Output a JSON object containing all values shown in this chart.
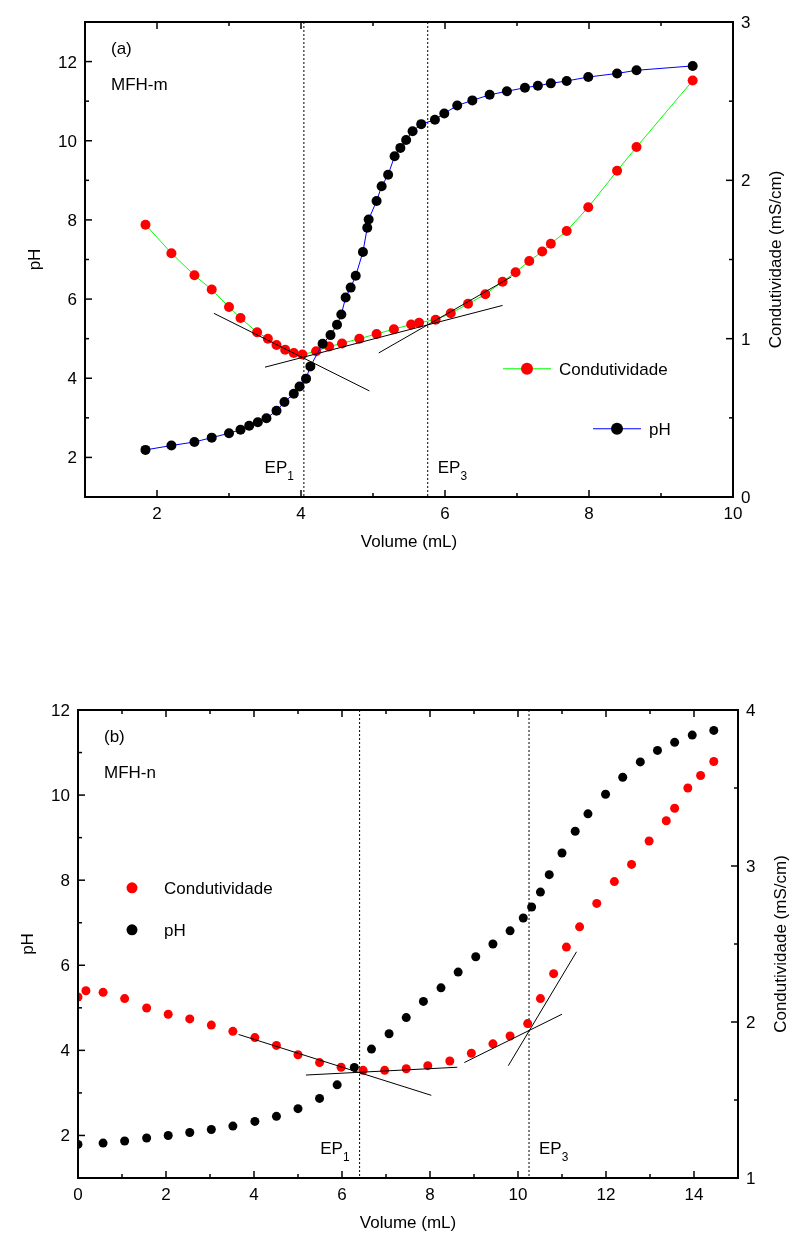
{
  "chart_data": [
    {
      "type": "line",
      "xlabel": "Volume (mL)",
      "ylabel": "pH",
      "y2label": "Condutividade (mS/cm)",
      "annotations": [
        "(a)",
        "MFH-m"
      ],
      "xlim": [
        1,
        10
      ],
      "ylim": [
        1,
        13
      ],
      "y2lim": [
        0,
        3
      ],
      "xticks": [
        2,
        {
          "value": 3,
          "label": null
        },
        4,
        {
          "value": 5,
          "label": null
        },
        6,
        {
          "value": 7,
          "label": null
        },
        8,
        {
          "value": 9,
          "label": null
        },
        10
      ],
      "yticks": [
        2,
        {
          "value": 3,
          "label": null
        },
        4,
        {
          "value": 5,
          "label": null
        },
        6,
        {
          "value": 7,
          "label": null
        },
        8,
        {
          "value": 9,
          "label": null
        },
        10,
        {
          "value": 11,
          "label": null
        },
        12
      ],
      "y2ticks": [
        0,
        {
          "value": 0.5,
          "label": null
        },
        1,
        {
          "value": 1.5,
          "label": null
        },
        2,
        {
          "value": 2.5,
          "label": null
        },
        3
      ],
      "legend": "right",
      "marker": "circle",
      "ref_lines": [
        {
          "axis": "x",
          "value": 4.04,
          "label": "EP$_{1}$",
          "line_style": "dotted"
        },
        {
          "axis": "x",
          "value": 5.76,
          "label": "EP$_{3}$",
          "line_style": "dotted"
        }
      ],
      "series": [
        {
          "name": "Condutividade",
          "color": "#00ff00",
          "colors": [
            "#ff0000",
            "#ff0000",
            "#ff0000",
            "#ff0000",
            "#ff0000",
            "#ff0000",
            "#ff0000",
            "#ff0000",
            "#ff0000",
            "#ff0000",
            "#ff0000",
            "#ff0000",
            "#ff0000",
            "#ff0000",
            "#ff0000",
            "#ff0000",
            "#ff0000",
            "#ff0000",
            "#ff0000",
            "#ff0000",
            "#ff0000",
            "#ff0000",
            "#ff0000",
            "#ff0000",
            "#ff0000",
            "#ff0000",
            "#ff0000",
            "#ff0000",
            "#ff0000",
            "#ff0000",
            "#ff0000",
            "#ff0000",
            "#ff0000",
            "#ff0000"
          ],
          "line_style": "solid",
          "axis": "y2",
          "x": [
            1.84,
            2.2,
            2.52,
            2.76,
            3.0,
            3.16,
            3.39,
            3.54,
            3.66,
            3.78,
            3.9,
            4.02,
            4.21,
            4.39,
            4.57,
            4.81,
            5.05,
            5.29,
            5.53,
            5.64,
            5.87,
            6.08,
            6.32,
            6.56,
            6.8,
            6.98,
            7.17,
            7.35,
            7.47,
            7.69,
            7.99,
            8.39,
            8.66,
            9.44
          ],
          "values": [
            1.72,
            1.54,
            1.4,
            1.31,
            1.2,
            1.13,
            1.04,
            1.0,
            0.96,
            0.93,
            0.91,
            0.9,
            0.92,
            0.95,
            0.97,
            1.0,
            1.03,
            1.06,
            1.09,
            1.1,
            1.12,
            1.16,
            1.22,
            1.28,
            1.36,
            1.42,
            1.49,
            1.55,
            1.6,
            1.68,
            1.83,
            2.06,
            2.21,
            2.63
          ]
        },
        {
          "name": "pH",
          "color": "#0000ff",
          "colors": [
            "#000000",
            "#000000",
            "#000000",
            "#000000",
            "#000000",
            "#000000",
            "#000000",
            "#000000",
            "#000000",
            "#000000",
            "#000000",
            "#000000",
            "#000000",
            "#000000",
            "#000000",
            "#000000",
            "#000000",
            "#000000",
            "#000000",
            "#000000",
            "#000000",
            "#000000",
            "#000000",
            "#000000",
            "#000000",
            "#000000",
            "#000000",
            "#000000",
            "#000000",
            "#000000",
            "#000000",
            "#000000",
            "#000000",
            "#000000",
            "#000000",
            "#000000",
            "#000000",
            "#000000",
            "#000000",
            "#000000",
            "#000000",
            "#000000",
            "#000000",
            "#000000",
            "#000000",
            "#000000",
            "#000000"
          ],
          "line_style": "solid",
          "x": [
            1.84,
            2.2,
            2.52,
            2.76,
            3.0,
            3.16,
            3.28,
            3.4,
            3.52,
            3.66,
            3.77,
            3.9,
            3.98,
            4.07,
            4.13,
            4.3,
            4.41,
            4.5,
            4.56,
            4.62,
            4.69,
            4.76,
            4.86,
            4.92,
            4.94,
            5.05,
            5.12,
            5.21,
            5.3,
            5.38,
            5.46,
            5.55,
            5.67,
            5.86,
            5.99,
            6.17,
            6.38,
            6.62,
            6.86,
            7.11,
            7.29,
            7.47,
            7.69,
            7.99,
            8.39,
            8.66,
            9.44
          ],
          "values": [
            2.19,
            2.3,
            2.39,
            2.5,
            2.61,
            2.7,
            2.8,
            2.89,
            2.99,
            3.18,
            3.4,
            3.61,
            3.79,
            3.99,
            4.3,
            4.87,
            5.09,
            5.35,
            5.61,
            6.04,
            6.29,
            6.59,
            7.19,
            7.8,
            8.01,
            8.48,
            8.85,
            9.14,
            9.61,
            9.82,
            10.02,
            10.24,
            10.42,
            10.53,
            10.69,
            10.89,
            11.02,
            11.16,
            11.25,
            11.34,
            11.39,
            11.45,
            11.51,
            11.61,
            11.7,
            11.78,
            11.89
          ]
        },
        {
          "type": "line",
          "color": "#000000",
          "marker": "none",
          "line_style": "solid",
          "axis": "y2",
          "x": [
            2.79,
            4.95
          ],
          "values": [
            1.16,
            0.67
          ]
        },
        {
          "type": "line",
          "color": "#000000",
          "marker": "none",
          "line_style": "solid",
          "axis": "y2",
          "x": [
            3.5,
            6.8
          ],
          "values": [
            0.82,
            1.21
          ]
        },
        {
          "type": "line",
          "color": "#000000",
          "marker": "none",
          "line_style": "solid",
          "axis": "y2",
          "x": [
            5.08,
            6.92
          ],
          "values": [
            0.91,
            1.39
          ]
        }
      ]
    },
    {
      "type": "scatter",
      "xlabel": "Volume (mL)",
      "ylabel": "pH",
      "y2label": "Condutividade (mS/cm)",
      "annotations": [
        "(b)",
        "MFH-n"
      ],
      "xlim": [
        0,
        15
      ],
      "ylim": [
        1,
        12
      ],
      "y2lim": [
        1,
        4
      ],
      "xticks": [
        0,
        {
          "value": 1,
          "label": null
        },
        2,
        {
          "value": 3,
          "label": null
        },
        4,
        {
          "value": 5,
          "label": null
        },
        6,
        {
          "value": 7,
          "label": null
        },
        8,
        {
          "value": 9,
          "label": null
        },
        10,
        {
          "value": 11,
          "label": null
        },
        12,
        {
          "value": 13,
          "label": null
        },
        14
      ],
      "yticks": [
        2,
        {
          "value": 3,
          "label": null
        },
        4,
        {
          "value": 5,
          "label": null
        },
        6,
        {
          "value": 7,
          "label": null
        },
        8,
        {
          "value": 9,
          "label": null
        },
        10,
        {
          "value": 11,
          "label": null
        },
        12
      ],
      "y2ticks": [
        1,
        {
          "value": 1.5,
          "label": null
        },
        2,
        {
          "value": 2.5,
          "label": null
        },
        3,
        {
          "value": 3.5,
          "label": null
        },
        4
      ],
      "legend": "left",
      "marker": "circle",
      "ref_lines": [
        {
          "axis": "x",
          "value": 6.4,
          "label": "EP$_{1}$",
          "line_style": "dotted"
        },
        {
          "axis": "x",
          "value": 10.25,
          "label": "EP$_{3}$",
          "line_style": "dotted"
        }
      ],
      "series": [
        {
          "name": "Condutividade",
          "color": "#ff0000",
          "axis": "y2",
          "x": [
            0,
            0.18,
            0.57,
            1.06,
            1.56,
            2.05,
            2.54,
            3.03,
            3.52,
            4.02,
            4.51,
            5.0,
            5.49,
            5.98,
            6.48,
            6.97,
            7.46,
            7.95,
            8.45,
            8.94,
            9.43,
            9.82,
            10.22,
            10.51,
            10.81,
            11.1,
            11.4,
            11.79,
            12.19,
            12.58,
            12.98,
            13.37,
            13.56,
            13.86,
            14.15,
            14.45
          ],
          "values": [
            2.16,
            2.2,
            2.19,
            2.15,
            2.09,
            2.05,
            2.02,
            1.98,
            1.94,
            1.9,
            1.85,
            1.79,
            1.74,
            1.71,
            1.69,
            1.69,
            1.7,
            1.72,
            1.75,
            1.8,
            1.86,
            1.91,
            1.99,
            2.15,
            2.31,
            2.48,
            2.61,
            2.76,
            2.9,
            3.01,
            3.16,
            3.29,
            3.37,
            3.5,
            3.58,
            3.67
          ]
        },
        {
          "name": "pH",
          "color": "#000000",
          "x": [
            0,
            0.57,
            1.06,
            1.56,
            2.05,
            2.54,
            3.03,
            3.52,
            4.02,
            4.51,
            5.0,
            5.49,
            5.89,
            6.28,
            6.67,
            7.07,
            7.46,
            7.85,
            8.25,
            8.64,
            9.04,
            9.43,
            9.82,
            10.12,
            10.31,
            10.51,
            10.71,
            11.0,
            11.3,
            11.59,
            11.99,
            12.38,
            12.78,
            13.17,
            13.56,
            13.96,
            14.45
          ],
          "values": [
            1.79,
            1.82,
            1.87,
            1.94,
            2.0,
            2.07,
            2.14,
            2.22,
            2.33,
            2.45,
            2.63,
            2.87,
            3.19,
            3.6,
            4.03,
            4.39,
            4.77,
            5.15,
            5.47,
            5.84,
            6.2,
            6.5,
            6.81,
            7.11,
            7.37,
            7.72,
            8.13,
            8.64,
            9.15,
            9.56,
            10.02,
            10.42,
            10.78,
            11.05,
            11.24,
            11.41,
            11.52
          ]
        },
        {
          "type": "line",
          "color": "#000000",
          "marker": "none",
          "line_style": "solid",
          "axis": "y2",
          "x": [
            3.65,
            8.03
          ],
          "values": [
            1.92,
            1.53
          ]
        },
        {
          "type": "line",
          "color": "#000000",
          "marker": "none",
          "line_style": "solid",
          "axis": "y2",
          "x": [
            5.18,
            8.62
          ],
          "values": [
            1.66,
            1.71
          ]
        },
        {
          "type": "line",
          "color": "#000000",
          "marker": "none",
          "line_style": "solid",
          "axis": "y2",
          "x": [
            8.78,
            11.0
          ],
          "values": [
            1.74,
            2.05
          ]
        },
        {
          "type": "line",
          "color": "#000000",
          "marker": "none",
          "line_style": "solid",
          "axis": "y2",
          "x": [
            9.78,
            11.33
          ],
          "values": [
            1.72,
            2.45
          ]
        }
      ]
    }
  ]
}
